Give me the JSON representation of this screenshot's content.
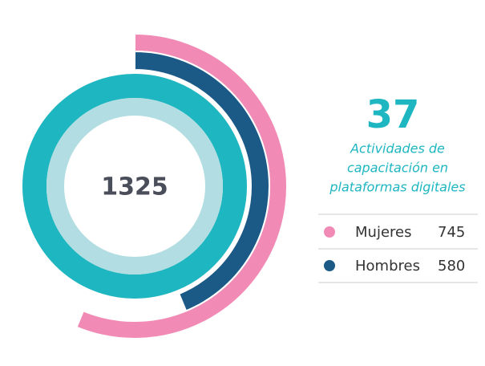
{
  "chart_data": {
    "type": "radial",
    "total": 1325,
    "headline": "37",
    "subtitle": [
      "Actividades de",
      "capacitación en",
      "plataformas digitales"
    ],
    "categories": [
      "Mujeres",
      "Hombres"
    ],
    "values": [
      745,
      580
    ],
    "colors": [
      "#f18bb6",
      "#1b5a87"
    ],
    "ring_color": "#1eb6c1",
    "inner_ring_color": "#b2dde2"
  }
}
